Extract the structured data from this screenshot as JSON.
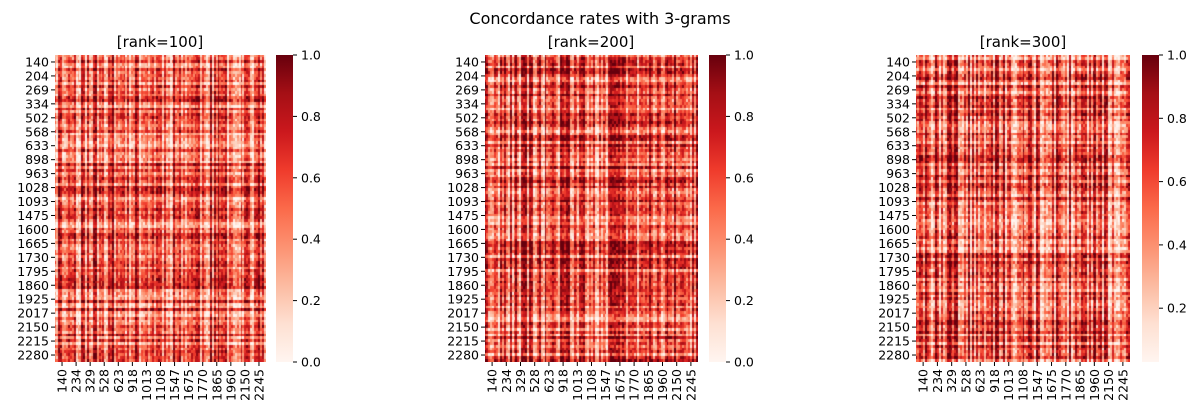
{
  "figure_title": "Concordance rates with 3-grams",
  "chart_data": [
    {
      "type": "heatmap",
      "title": "[rank=100]",
      "colormap": "Reds",
      "y_tick_labels": [
        "140",
        "204",
        "269",
        "334",
        "502",
        "568",
        "633",
        "898",
        "963",
        "1028",
        "1093",
        "1475",
        "1600",
        "1665",
        "1730",
        "1795",
        "1860",
        "1925",
        "2017",
        "2150",
        "2215",
        "2280"
      ],
      "x_tick_labels": [
        "140",
        "234",
        "329",
        "528",
        "623",
        "918",
        "1013",
        "1108",
        "1547",
        "1675",
        "1770",
        "1865",
        "1960",
        "2150",
        "2245"
      ],
      "colorbar": {
        "range": [
          0.0,
          1.0
        ],
        "ticks": [
          "0.0",
          "0.2",
          "0.4",
          "0.6",
          "0.8",
          "1.0"
        ]
      },
      "grid_size": 110,
      "value_range": [
        0.0,
        1.0
      ]
    },
    {
      "type": "heatmap",
      "title": "[rank=200]",
      "colormap": "Reds",
      "y_tick_labels": [
        "140",
        "204",
        "269",
        "334",
        "502",
        "568",
        "633",
        "898",
        "963",
        "1028",
        "1093",
        "1475",
        "1600",
        "1665",
        "1730",
        "1795",
        "1860",
        "1925",
        "2017",
        "2150",
        "2215",
        "2280"
      ],
      "x_tick_labels": [
        "140",
        "234",
        "329",
        "528",
        "623",
        "918",
        "1013",
        "1108",
        "1547",
        "1675",
        "1770",
        "1865",
        "1960",
        "2150",
        "2245"
      ],
      "colorbar": {
        "range": [
          0.0,
          1.0
        ],
        "ticks": [
          "0.0",
          "0.2",
          "0.4",
          "0.6",
          "0.8",
          "1.0"
        ]
      },
      "grid_size": 110,
      "value_range": [
        0.0,
        1.0
      ]
    },
    {
      "type": "heatmap",
      "title": "[rank=300]",
      "colormap": "Reds",
      "y_tick_labels": [
        "140",
        "204",
        "269",
        "334",
        "502",
        "568",
        "633",
        "898",
        "963",
        "1028",
        "1093",
        "1475",
        "1600",
        "1665",
        "1730",
        "1795",
        "1860",
        "1925",
        "2017",
        "2150",
        "2215",
        "2280"
      ],
      "x_tick_labels": [
        "140",
        "234",
        "329",
        "528",
        "623",
        "918",
        "1013",
        "1108",
        "1547",
        "1675",
        "1770",
        "1865",
        "1960",
        "2150",
        "2245"
      ],
      "colorbar": {
        "range": [
          0.03,
          1.0
        ],
        "ticks": [
          "0.2",
          "0.4",
          "0.6",
          "0.8",
          "1.0"
        ]
      },
      "grid_size": 110,
      "value_range": [
        0.03,
        1.0
      ]
    }
  ],
  "colors": {
    "reds_colormap": [
      "#fff5f0",
      "#fee0d2",
      "#fcbba1",
      "#fc9272",
      "#fb6a4a",
      "#ef3b2c",
      "#cb181d",
      "#a50f15",
      "#67000d"
    ]
  }
}
